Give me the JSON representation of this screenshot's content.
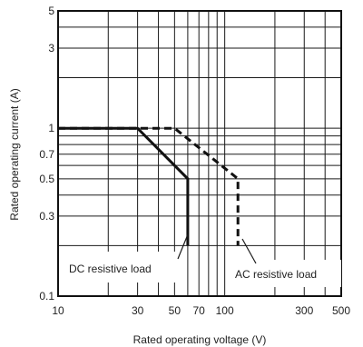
{
  "chart_data": {
    "type": "line",
    "title": "",
    "xlabel": "Rated operating voltage (V)",
    "ylabel": "Rated operating current (A)",
    "xscale": "log",
    "yscale": "log",
    "xlim": [
      10,
      500
    ],
    "ylim": [
      0.1,
      5
    ],
    "grid": true,
    "x_ticks": [
      10,
      30,
      50,
      70,
      100,
      300,
      500
    ],
    "y_ticks": [
      0.1,
      0.3,
      0.5,
      0.7,
      1,
      3,
      5
    ],
    "x_grid": [
      20,
      30,
      40,
      50,
      60,
      70,
      80,
      90,
      100,
      200,
      300,
      400
    ],
    "y_grid": [
      0.2,
      0.3,
      0.4,
      0.5,
      0.6,
      0.7,
      0.8,
      0.9,
      1,
      2,
      3,
      4
    ],
    "series": [
      {
        "name": "DC resistive load",
        "style": "solid",
        "x": [
          10,
          30,
          60,
          60
        ],
        "y": [
          1,
          1,
          0.5,
          0.2
        ]
      },
      {
        "name": "AC resistive load",
        "style": "dashed",
        "x": [
          10,
          50,
          120,
          120
        ],
        "y": [
          1,
          1,
          0.5,
          0.2
        ]
      }
    ]
  }
}
